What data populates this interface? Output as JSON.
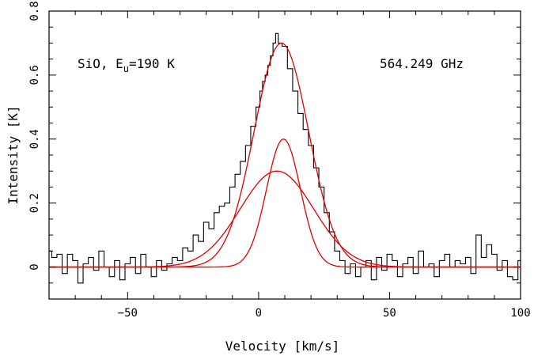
{
  "chart_data": {
    "type": "line",
    "xlabel": "Velocity [km/s]",
    "ylabel": "Intensity [K]",
    "xlim": [
      -80,
      100
    ],
    "ylim": [
      -0.1,
      0.8
    ],
    "x_ticks": [
      -50,
      0,
      50,
      100
    ],
    "x_tick_labels": [
      "−50",
      "0",
      "50",
      "100"
    ],
    "y_ticks": [
      0,
      0.2,
      0.4,
      0.6,
      0.8
    ],
    "y_tick_labels": [
      "0",
      "0.2",
      "0.4",
      "0.6",
      "0.8"
    ],
    "grid": false,
    "annotations": {
      "species_prefix": "SiO, E",
      "species_sub": "u",
      "species_suffix": "=190 K",
      "frequency": "564.249 GHz"
    },
    "colors": {
      "observed": "#000000",
      "fit": "#e00000"
    },
    "series": [
      {
        "style": "histogram",
        "x": [
          -80,
          -78,
          -76,
          -74,
          -72,
          -70,
          -68,
          -66,
          -64,
          -62,
          -60,
          -58,
          -56,
          -54,
          -52,
          -50,
          -48,
          -46,
          -44,
          -42,
          -40,
          -38,
          -36,
          -34,
          -32,
          -30,
          -28,
          -26,
          -24,
          -22,
          -20,
          -18,
          -16,
          -14,
          -12,
          -10,
          -8,
          -6,
          -4,
          -2,
          0,
          1,
          2,
          3,
          4,
          5,
          6,
          7,
          8,
          10,
          12,
          14,
          16,
          18,
          20,
          22,
          24,
          26,
          28,
          30,
          32,
          34,
          36,
          38,
          40,
          42,
          44,
          46,
          48,
          50,
          52,
          54,
          56,
          58,
          60,
          62,
          64,
          66,
          68,
          70,
          72,
          74,
          76,
          78,
          80,
          82,
          84,
          86,
          88,
          90,
          92,
          94,
          96,
          98,
          100
        ],
        "values": [
          0.05,
          0.03,
          0.04,
          -0.02,
          0.04,
          0.02,
          -0.05,
          0.01,
          0.03,
          -0.01,
          0.05,
          0.0,
          -0.03,
          0.02,
          -0.04,
          0.01,
          0.03,
          -0.02,
          0.04,
          0.0,
          -0.03,
          0.02,
          -0.01,
          0.01,
          0.03,
          0.02,
          0.06,
          0.05,
          0.1,
          0.08,
          0.14,
          0.12,
          0.17,
          0.19,
          0.2,
          0.25,
          0.29,
          0.33,
          0.38,
          0.44,
          0.5,
          0.55,
          0.58,
          0.6,
          0.63,
          0.66,
          0.7,
          0.73,
          0.7,
          0.69,
          0.62,
          0.55,
          0.48,
          0.43,
          0.38,
          0.31,
          0.25,
          0.17,
          0.11,
          0.05,
          0.02,
          -0.02,
          0.01,
          -0.03,
          0.0,
          0.02,
          -0.04,
          0.03,
          -0.01,
          0.04,
          0.02,
          -0.03,
          0.01,
          0.03,
          -0.02,
          0.05,
          0.0,
          0.01,
          -0.03,
          0.02,
          0.04,
          0.0,
          0.02,
          0.01,
          0.03,
          -0.02,
          0.1,
          0.03,
          0.07,
          0.04,
          -0.01,
          0.02,
          -0.03,
          -0.04,
          0.02
        ]
      },
      {
        "style": "smooth",
        "component": "total",
        "amp": 0.7,
        "center": 8.7,
        "sigma": 10.4
      },
      {
        "style": "smooth",
        "component": "narrow",
        "amp": 0.4,
        "center": 9.5,
        "sigma": 6.5
      },
      {
        "style": "smooth",
        "component": "broad",
        "amp": 0.3,
        "center": 7,
        "sigma": 14
      }
    ]
  }
}
